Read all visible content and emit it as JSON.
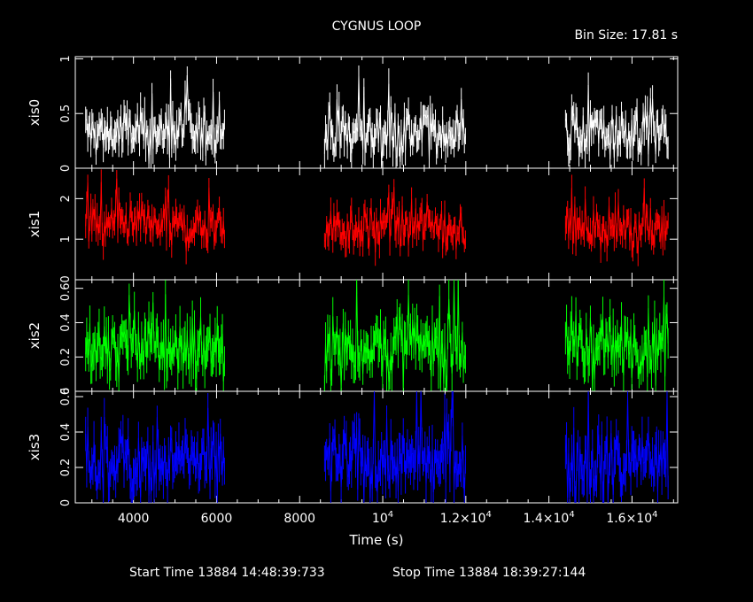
{
  "chart_data": {
    "type": "line",
    "title": "CYGNUS LOOP",
    "bin_size_label": "Bin Size: 17.81 s",
    "xlabel": "Time (s)",
    "xlim": [
      2600,
      17100
    ],
    "x_ticks": [
      {
        "value": 4000,
        "label": "4000"
      },
      {
        "value": 6000,
        "label": "6000"
      },
      {
        "value": 8000,
        "label": "8000"
      },
      {
        "value": 10000,
        "label": "10",
        "exp": "4",
        "pre": ""
      },
      {
        "value": 12000,
        "label": "1.2×10",
        "exp": "4"
      },
      {
        "value": 14000,
        "label": "1.4×10",
        "exp": "4"
      },
      {
        "value": 16000,
        "label": "1.6×10",
        "exp": "4"
      }
    ],
    "footer": {
      "start": "Start Time 13884 14:48:39:733",
      "stop": "Stop Time 13884 18:39:27:144"
    },
    "gaps": [
      [
        6200,
        8600
      ],
      [
        12000,
        14400
      ]
    ],
    "segments": [
      [
        2850,
        6200
      ],
      [
        8600,
        12000
      ],
      [
        14400,
        16880
      ]
    ],
    "panels": [
      {
        "name": "xis0",
        "color": "#ffffff",
        "ylim": [
          0,
          1.02
        ],
        "mean": 0.32,
        "spread": 0.12,
        "ticks": [
          {
            "value": 0,
            "label": "0"
          },
          {
            "value": 0.5,
            "label": "0.5"
          },
          {
            "value": 1,
            "label": "1"
          }
        ]
      },
      {
        "name": "xis1",
        "color": "#ff0000",
        "ylim": [
          0,
          2.75
        ],
        "mean": 1.3,
        "spread": 0.28,
        "ticks": [
          {
            "value": 1,
            "label": "1"
          },
          {
            "value": 2,
            "label": "2"
          }
        ]
      },
      {
        "name": "xis2",
        "color": "#00ff00",
        "ylim": [
          0,
          0.65
        ],
        "mean": 0.26,
        "spread": 0.1,
        "ticks": [
          {
            "value": 0,
            "label": "0"
          },
          {
            "value": 0.2,
            "label": "0.2"
          },
          {
            "value": 0.4,
            "label": "0.4"
          },
          {
            "value": 0.6,
            "label": "0.60"
          }
        ]
      },
      {
        "name": "xis3",
        "color": "#0000ff",
        "ylim": [
          0,
          0.63
        ],
        "mean": 0.23,
        "spread": 0.1,
        "ticks": [
          {
            "value": 0,
            "label": "0"
          },
          {
            "value": 0.2,
            "label": "0.2"
          },
          {
            "value": 0.4,
            "label": "0.4"
          },
          {
            "value": 0.6,
            "label": "0.6"
          }
        ]
      }
    ]
  }
}
